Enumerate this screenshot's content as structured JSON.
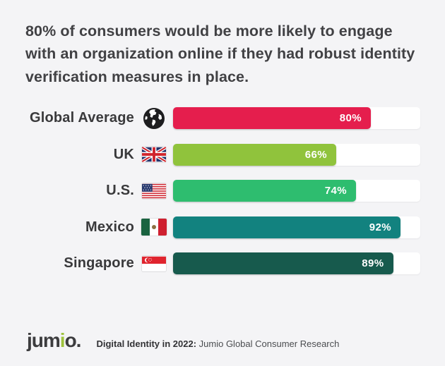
{
  "title": "80% of consumers would be more likely to engage with an organization online if they had robust identity verification measures in place.",
  "chart_data": {
    "type": "bar",
    "orientation": "horizontal",
    "categories": [
      "Global Average",
      "UK",
      "U.S.",
      "Mexico",
      "Singapore"
    ],
    "values": [
      80,
      66,
      74,
      92,
      89
    ],
    "value_labels": [
      "80%",
      "66%",
      "74%",
      "92%",
      "89%"
    ],
    "bar_colors": [
      "#e51e4d",
      "#90c33c",
      "#2ebd6f",
      "#12827f",
      "#175a4d"
    ],
    "track_color": "#ffffff",
    "xlim": [
      0,
      100
    ],
    "icons": [
      "globe-icon",
      "uk-flag-icon",
      "us-flag-icon",
      "mexico-flag-icon",
      "singapore-flag-icon"
    ],
    "grid": false,
    "legend": false,
    "value_label_position": "inside-end"
  },
  "footer": {
    "logo_part1": "jum",
    "logo_part2": "i",
    "logo_part3": "o.",
    "source_bold": "Digital Identity in 2022:",
    "source_rest": " Jumio Global Consumer Research"
  },
  "colors": {
    "background": "#f4f4f6",
    "title_text": "#414144",
    "label_text": "#39393b",
    "logo_accent": "#9ec23b"
  }
}
